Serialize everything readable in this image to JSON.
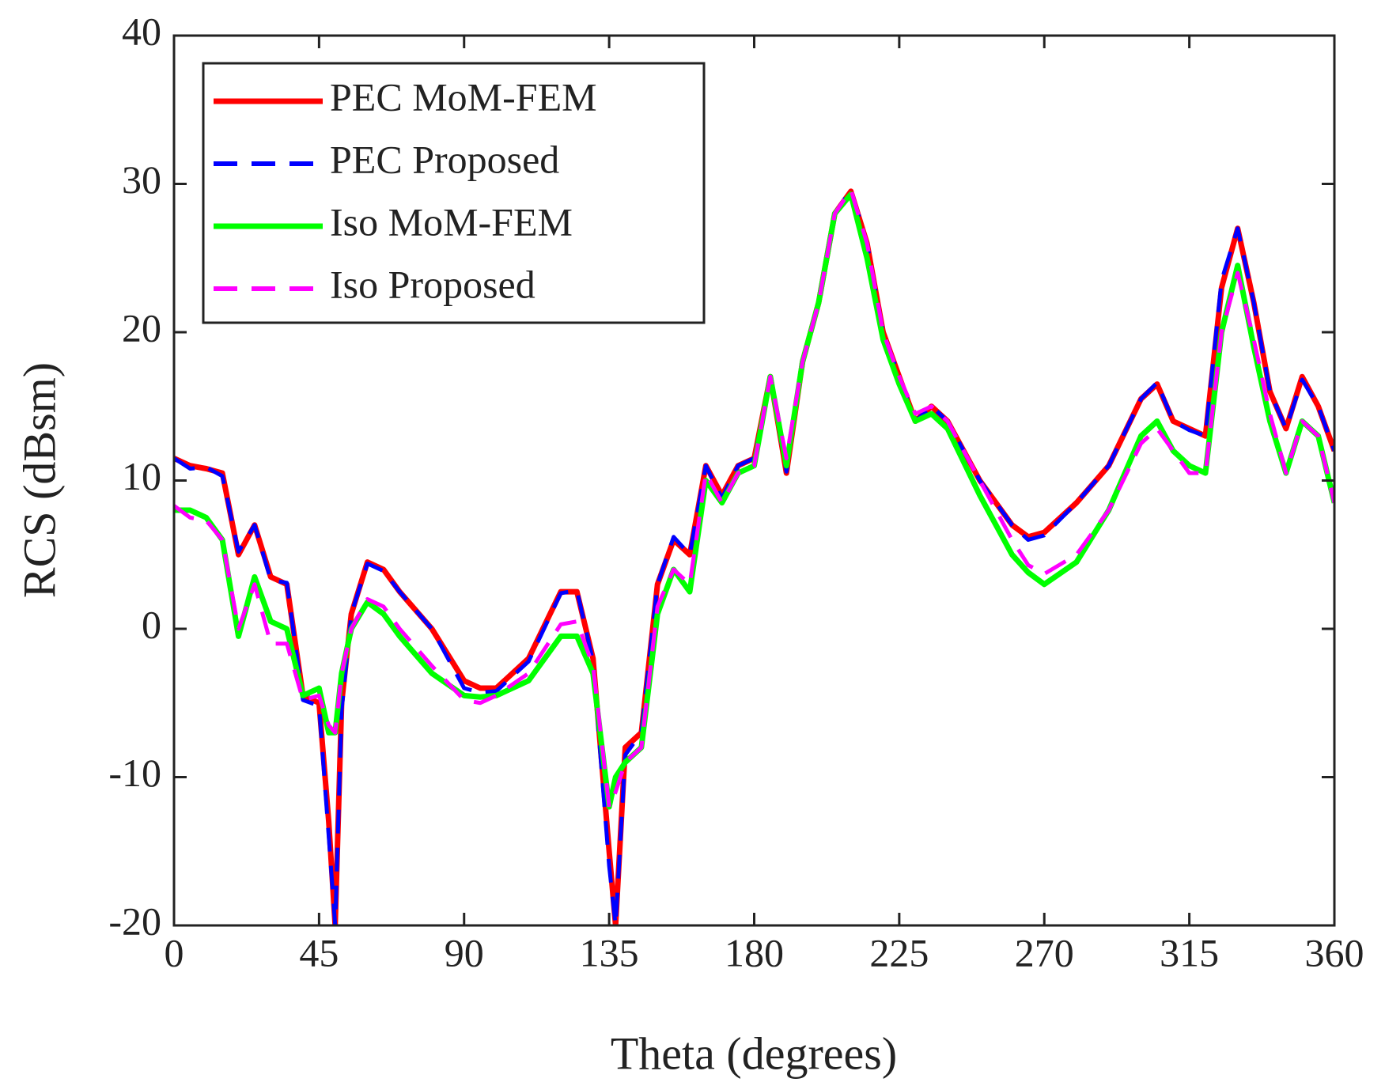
{
  "chart_data": {
    "type": "line",
    "xlabel": "Theta (degrees)",
    "ylabel": "RCS (dBsm)",
    "xlim": [
      0,
      360
    ],
    "xticks": [
      0,
      45,
      90,
      135,
      180,
      225,
      270,
      315,
      360
    ],
    "ylim": [
      -20,
      40
    ],
    "yticks": [
      -20,
      -10,
      0,
      10,
      20,
      30,
      40
    ],
    "legend": "upper left",
    "grid": false,
    "x": [
      0,
      5,
      10,
      15,
      20,
      25,
      30,
      35,
      40,
      45,
      48,
      50,
      52,
      55,
      60,
      65,
      70,
      80,
      90,
      95,
      100,
      110,
      120,
      125,
      130,
      135,
      137,
      140,
      145,
      150,
      155,
      160,
      165,
      170,
      175,
      180,
      185,
      190,
      195,
      200,
      205,
      210,
      215,
      220,
      225,
      230,
      235,
      240,
      250,
      260,
      265,
      270,
      280,
      290,
      300,
      305,
      310,
      315,
      320,
      325,
      330,
      335,
      340,
      345,
      350,
      355,
      360
    ],
    "series": [
      {
        "name": "PEC MoM-FEM",
        "color": "#ff0000",
        "dash": "solid",
        "values": [
          11.5,
          11,
          10.8,
          10.5,
          5,
          7,
          3.5,
          3,
          -4.5,
          -5,
          -13,
          -20,
          -5,
          1,
          4.5,
          4,
          2.5,
          0,
          -3.5,
          -4,
          -4,
          -2,
          2.5,
          2.5,
          -2,
          -15,
          -20,
          -8,
          -7,
          3,
          6,
          5,
          11,
          9,
          11,
          11.5,
          17,
          10.5,
          18,
          22,
          28,
          29.5,
          26,
          20,
          17,
          14,
          15,
          14,
          10,
          7,
          6.2,
          6.5,
          8.5,
          11,
          15.5,
          16.5,
          14,
          13.5,
          13,
          23,
          27,
          22,
          16,
          13.5,
          17,
          15,
          12
        ]
      },
      {
        "name": "PEC Proposed",
        "color": "#0000ff",
        "dash": "dashed",
        "values": [
          11.5,
          10.8,
          10.9,
          10.3,
          5.2,
          7,
          3.3,
          3.1,
          -4.8,
          -5.2,
          -14,
          -20,
          -5.5,
          1,
          4.4,
          3.9,
          2.5,
          0,
          -4,
          -4.3,
          -4.2,
          -2.2,
          2.4,
          2.6,
          -2.2,
          -16,
          -20,
          -8.5,
          -7,
          3,
          6.2,
          5,
          11,
          8.8,
          11,
          11.5,
          16.8,
          10.6,
          18,
          22,
          28,
          29.6,
          26,
          20,
          17,
          14,
          15,
          14,
          10,
          7,
          6,
          6.3,
          8.5,
          11,
          15.5,
          16.6,
          14,
          13.4,
          13,
          23.5,
          27,
          22,
          16,
          13.5,
          16.8,
          15,
          12
        ]
      },
      {
        "name": "Iso MoM-FEM",
        "color": "#00ff00",
        "dash": "solid",
        "values": [
          8,
          8,
          7.5,
          6,
          -0.5,
          3.5,
          0.5,
          0,
          -4.5,
          -4,
          -7,
          -7,
          -3,
          0,
          1.8,
          1,
          -0.5,
          -3,
          -4.5,
          -4.6,
          -4.5,
          -3.5,
          -0.5,
          -0.5,
          -3,
          -12,
          -10,
          -9,
          -8,
          1,
          4,
          2.5,
          10,
          8.5,
          10.5,
          11,
          17,
          11,
          18,
          22,
          28,
          29.3,
          25,
          19.5,
          16.5,
          14,
          14.5,
          13.5,
          9,
          5,
          3.8,
          3,
          4.5,
          8,
          13,
          14,
          12,
          11,
          10.5,
          20,
          24.5,
          19,
          14,
          10.5,
          14,
          13,
          8.5
        ]
      },
      {
        "name": "Iso Proposed",
        "color": "#ff00ff",
        "dash": "dashed",
        "values": [
          8.3,
          7.5,
          7.3,
          6,
          0,
          3,
          -1,
          -1,
          -4.8,
          -4.5,
          -6.5,
          -7,
          -3,
          0,
          2,
          1.5,
          0,
          -2.5,
          -4.8,
          -5,
          -4.5,
          -3,
          0.3,
          0.5,
          -2.5,
          -12,
          -11,
          -9,
          -8,
          1.5,
          4,
          3,
          10.5,
          8.5,
          10.5,
          11,
          17,
          11.5,
          18,
          22,
          28,
          29.6,
          26,
          20,
          17,
          14.5,
          15,
          14,
          10,
          6,
          4.3,
          3.7,
          5,
          8,
          12.5,
          13.5,
          12,
          10.5,
          10.5,
          20,
          24,
          19.5,
          14.5,
          10.5,
          14,
          13,
          8.5
        ]
      }
    ]
  }
}
